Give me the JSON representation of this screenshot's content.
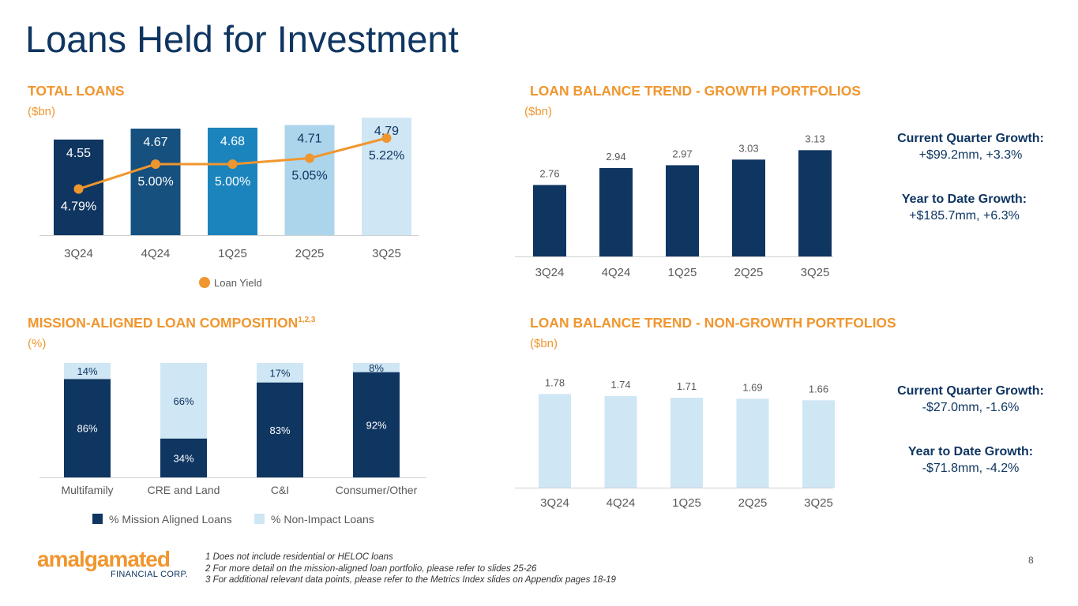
{
  "page": {
    "title": "Loans Held for Investment",
    "page_number": "8",
    "logo": {
      "name": "amalgamated",
      "subtitle": "FINANCIAL CORP."
    },
    "footnotes": [
      "1 Does not include residential or HELOC loans",
      "2 For more detail on the mission-aligned loan portfolio, please refer to slides 25-26",
      "3 For additional relevant data points, please refer to the Metrics Index slides on Appendix pages 18-19"
    ]
  },
  "sections": {
    "total": {
      "title": "TOTAL LOANS",
      "unit": "($bn)"
    },
    "growth": {
      "title": "LOAN BALANCE TREND - GROWTH PORTFOLIOS",
      "unit": "($bn)",
      "note1_title": "Current Quarter Growth:",
      "note1_value": "+$99.2mm, +3.3%",
      "note2_title": "Year to Date Growth:",
      "note2_value": "+$185.7mm, +6.3%"
    },
    "mission": {
      "title": "MISSION-ALIGNED LOAN COMPOSITION",
      "sup": "1,2,3",
      "unit": "(%)"
    },
    "nongrowth": {
      "title": "LOAN BALANCE TREND - NON-GROWTH PORTFOLIOS",
      "unit": "($bn)",
      "note1_title": "Current Quarter Growth:",
      "note1_value": "-$27.0mm, -1.6%",
      "note2_title": "Year to Date Growth:",
      "note2_value": "-$71.8mm, -4.2%"
    }
  },
  "colors": {
    "navy": "#0f3561",
    "orange": "#f0962e",
    "light_blue": "#cfe6f4",
    "total_bars": [
      "#0f3561",
      "#15507f",
      "#1b84bd",
      "#acd5ec",
      "#cfe6f4"
    ]
  },
  "chart_data": [
    {
      "id": "total_loans",
      "type": "bar",
      "title": "TOTAL LOANS",
      "ylabel": "($bn)",
      "categories": [
        "3Q24",
        "4Q24",
        "1Q25",
        "2Q25",
        "3Q25"
      ],
      "values": [
        4.55,
        4.67,
        4.68,
        4.71,
        4.79
      ],
      "value_labels": [
        "4.55",
        "4.67",
        "4.68",
        "4.71",
        "4.79"
      ],
      "ylim": [
        3.5,
        4.8
      ],
      "line_series": {
        "name": "Loan Yield",
        "values": [
          4.79,
          5.0,
          5.0,
          5.05,
          5.22
        ],
        "labels": [
          "4.79%",
          "5.00%",
          "5.00%",
          "5.05%",
          "5.22%"
        ],
        "ylim": [
          4.4,
          5.4
        ]
      },
      "legend": [
        "Loan Yield"
      ]
    },
    {
      "id": "growth",
      "type": "bar",
      "title": "LOAN BALANCE TREND - GROWTH PORTFOLIOS",
      "ylabel": "($bn)",
      "categories": [
        "3Q24",
        "4Q24",
        "1Q25",
        "2Q25",
        "3Q25"
      ],
      "values": [
        2.76,
        2.94,
        2.97,
        3.03,
        3.13
      ],
      "value_labels": [
        "2.76",
        "2.94",
        "2.97",
        "3.03",
        "3.13"
      ],
      "ylim": [
        2.0,
        3.2
      ]
    },
    {
      "id": "mission",
      "type": "bar",
      "stacked": true,
      "title": "MISSION-ALIGNED LOAN COMPOSITION",
      "ylabel": "(%)",
      "categories": [
        "Multifamily",
        "CRE and Land",
        "C&I",
        "Consumer/Other"
      ],
      "series": [
        {
          "name": "% Mission Aligned Loans",
          "values": [
            86,
            34,
            83,
            92
          ],
          "labels": [
            "86%",
            "34%",
            "83%",
            "92%"
          ]
        },
        {
          "name": "% Non-Impact Loans",
          "values": [
            14,
            66,
            17,
            8
          ],
          "labels": [
            "14%",
            "66%",
            "17%",
            "8%"
          ]
        }
      ],
      "ylim": [
        0,
        100
      ],
      "legend": [
        "% Mission Aligned Loans",
        "% Non-Impact Loans"
      ]
    },
    {
      "id": "nongrowth",
      "type": "bar",
      "title": "LOAN BALANCE TREND - NON-GROWTH PORTFOLIOS",
      "ylabel": "($bn)",
      "categories": [
        "3Q24",
        "4Q24",
        "1Q25",
        "2Q25",
        "3Q25"
      ],
      "values": [
        1.78,
        1.74,
        1.71,
        1.69,
        1.66
      ],
      "value_labels": [
        "1.78",
        "1.74",
        "1.71",
        "1.69",
        "1.66"
      ],
      "ylim": [
        0,
        1.8
      ]
    }
  ]
}
